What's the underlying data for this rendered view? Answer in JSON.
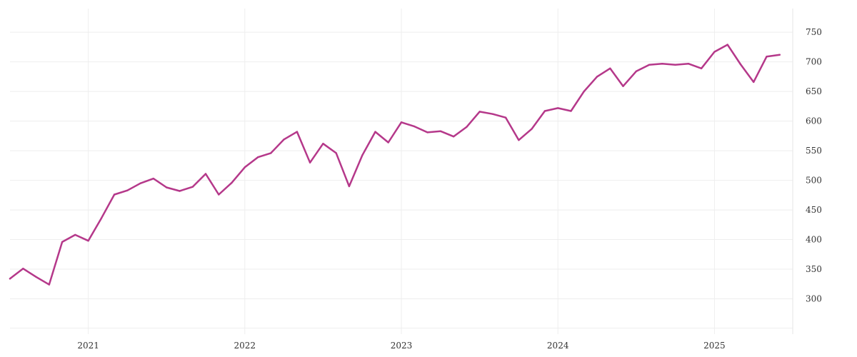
{
  "chart_data": {
    "type": "line",
    "title": "",
    "xlabel": "",
    "ylabel": "",
    "x_tick_labels": [
      "2021",
      "2022",
      "2023",
      "2024",
      "2025"
    ],
    "y_ticks": [
      300,
      350,
      400,
      450,
      500,
      550,
      600,
      650,
      700,
      750
    ],
    "y_tick_labels": [
      "300",
      "350",
      "400",
      "450",
      "500",
      "550",
      "600",
      "650",
      "700",
      "750"
    ],
    "ylim": [
      250,
      790
    ],
    "xlim": [
      "2020-07-01",
      "2025-07-01"
    ],
    "y_axis_position": "right",
    "grid": true,
    "legend": "none",
    "colors": {
      "series": "#b5388a"
    },
    "x": [
      "2020-07",
      "2020-08",
      "2020-09",
      "2020-10",
      "2020-11",
      "2020-12",
      "2021-01",
      "2021-02",
      "2021-03",
      "2021-04",
      "2021-05",
      "2021-06",
      "2021-07",
      "2021-08",
      "2021-09",
      "2021-10",
      "2021-11",
      "2021-12",
      "2022-01",
      "2022-02",
      "2022-03",
      "2022-04",
      "2022-05",
      "2022-06",
      "2022-07",
      "2022-08",
      "2022-09",
      "2022-10",
      "2022-11",
      "2022-12",
      "2023-01",
      "2023-02",
      "2023-03",
      "2023-04",
      "2023-05",
      "2023-06",
      "2023-07",
      "2023-08",
      "2023-09",
      "2023-10",
      "2023-11",
      "2023-12",
      "2024-01",
      "2024-02",
      "2024-03",
      "2024-04",
      "2024-05",
      "2024-06",
      "2024-07",
      "2024-08",
      "2024-09",
      "2024-10",
      "2024-11",
      "2024-12",
      "2025-01",
      "2025-02",
      "2025-03",
      "2025-04",
      "2025-05",
      "2025-06"
    ],
    "series": [
      {
        "values": [
          334,
          351,
          337,
          324,
          396,
          408,
          398,
          436,
          476,
          483,
          495,
          503,
          488,
          482,
          489,
          511,
          476,
          496,
          522,
          539,
          546,
          569,
          582,
          530,
          562,
          546,
          490,
          542,
          582,
          564,
          598,
          591,
          581,
          583,
          574,
          590,
          616,
          612,
          606,
          568,
          587,
          617,
          622,
          617,
          650,
          675,
          689,
          659,
          684,
          695,
          697,
          695,
          697,
          689,
          717,
          729,
          696,
          666,
          709,
          712
        ]
      }
    ]
  }
}
